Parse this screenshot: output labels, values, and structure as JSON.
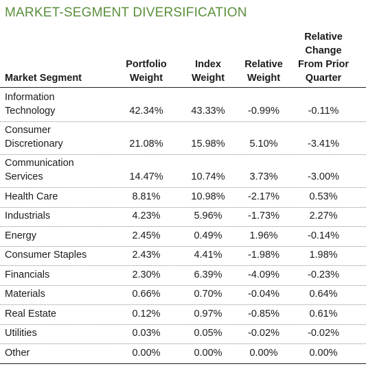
{
  "title": "MARKET-SEGMENT DIVERSIFICATION",
  "colors": {
    "title": "#5a8f3c",
    "rule": "#222222",
    "dotted": "#8a8a8a"
  },
  "headers": [
    "Market Segment",
    "Portfolio\nWeight",
    "Index\nWeight",
    "Relative\nWeight",
    "Relative\nChange\nFrom Prior\nQuarter"
  ],
  "rows": [
    {
      "segment": "Information\nTechnology",
      "portfolio": "42.34%",
      "index": "43.33%",
      "relative": "-0.99%",
      "change": "-0.11%"
    },
    {
      "segment": "Consumer\nDiscretionary",
      "portfolio": "21.08%",
      "index": "15.98%",
      "relative": "5.10%",
      "change": "-3.41%"
    },
    {
      "segment": "Communication\nServices",
      "portfolio": "14.47%",
      "index": "10.74%",
      "relative": "3.73%",
      "change": "-3.00%"
    },
    {
      "segment": "Health Care",
      "portfolio": "8.81%",
      "index": "10.98%",
      "relative": "-2.17%",
      "change": "0.53%"
    },
    {
      "segment": "Industrials",
      "portfolio": "4.23%",
      "index": "5.96%",
      "relative": "-1.73%",
      "change": "2.27%"
    },
    {
      "segment": "Energy",
      "portfolio": "2.45%",
      "index": "0.49%",
      "relative": "1.96%",
      "change": "-0.14%"
    },
    {
      "segment": "Consumer Staples",
      "portfolio": "2.43%",
      "index": "4.41%",
      "relative": "-1.98%",
      "change": "1.98%"
    },
    {
      "segment": "Financials",
      "portfolio": "2.30%",
      "index": "6.39%",
      "relative": "-4.09%",
      "change": "-0.23%"
    },
    {
      "segment": "Materials",
      "portfolio": "0.66%",
      "index": "0.70%",
      "relative": "-0.04%",
      "change": "0.64%"
    },
    {
      "segment": "Real Estate",
      "portfolio": "0.12%",
      "index": "0.97%",
      "relative": "-0.85%",
      "change": "0.61%"
    },
    {
      "segment": "Utilities",
      "portfolio": "0.03%",
      "index": "0.05%",
      "relative": "-0.02%",
      "change": "-0.02%"
    },
    {
      "segment": "Other",
      "portfolio": "0.00%",
      "index": "0.00%",
      "relative": "0.00%",
      "change": "0.00%"
    }
  ]
}
